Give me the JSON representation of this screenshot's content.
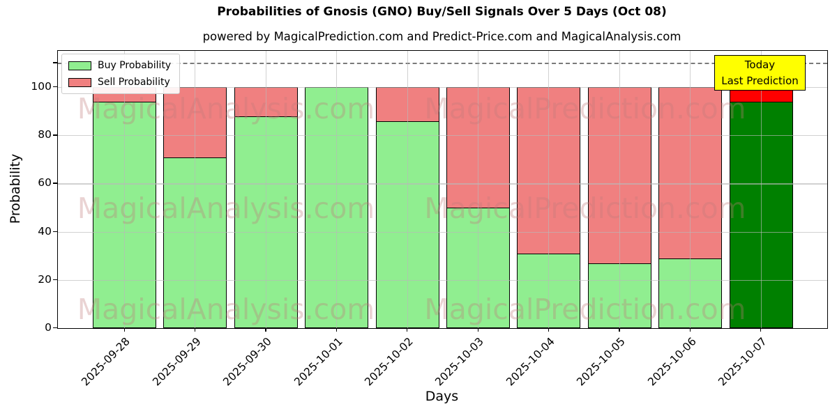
{
  "figure": {
    "title": "Probabilities of Gnosis (GNO) Buy/Sell Signals Over 5 Days (Oct 08)",
    "subtitle": "powered by MagicalPrediction.com and Predict-Price.com and MagicalAnalysis.com",
    "xlabel": "Days",
    "ylabel": "Probability"
  },
  "legend": {
    "items": [
      {
        "label": "Buy Probability",
        "color": "#90ee90"
      },
      {
        "label": "Sell Probability",
        "color": "#f08080"
      }
    ]
  },
  "annotation": {
    "line1": "Today",
    "line2": "Last Prediction",
    "bg_color": "#ffff00",
    "border_color": "#000000"
  },
  "watermarks": {
    "left_text": "MagicalAnalysis.com",
    "right_text": "MagicalPrediction.com"
  },
  "chart_data": {
    "type": "bar",
    "stacked": true,
    "title": "Probabilities of Gnosis (GNO) Buy/Sell Signals Over 5 Days (Oct 08)",
    "xlabel": "Days",
    "ylabel": "Probability",
    "categories": [
      "2025-09-28",
      "2025-09-29",
      "2025-09-30",
      "2025-10-01",
      "2025-10-02",
      "2025-10-03",
      "2025-10-04",
      "2025-10-05",
      "2025-10-06",
      "2025-10-07"
    ],
    "series": [
      {
        "name": "Buy Probability",
        "color": "#90ee90",
        "final_bar_color": "#008000",
        "values": [
          94,
          71,
          88,
          100,
          86,
          50,
          31,
          27,
          29,
          94
        ]
      },
      {
        "name": "Sell Probability",
        "color": "#f08080",
        "final_bar_color": "#ff0000",
        "values": [
          6,
          29,
          12,
          0,
          14,
          50,
          69,
          73,
          71,
          6
        ]
      }
    ],
    "ylim": [
      0,
      115
    ],
    "yticks": [
      0,
      20,
      40,
      60,
      80,
      100
    ],
    "threshold_line": {
      "y": 110,
      "style": "dashed",
      "color": "#7a7a7a"
    },
    "grid": true,
    "legend_position": "upper left",
    "bar_edge_color": "#000000"
  }
}
